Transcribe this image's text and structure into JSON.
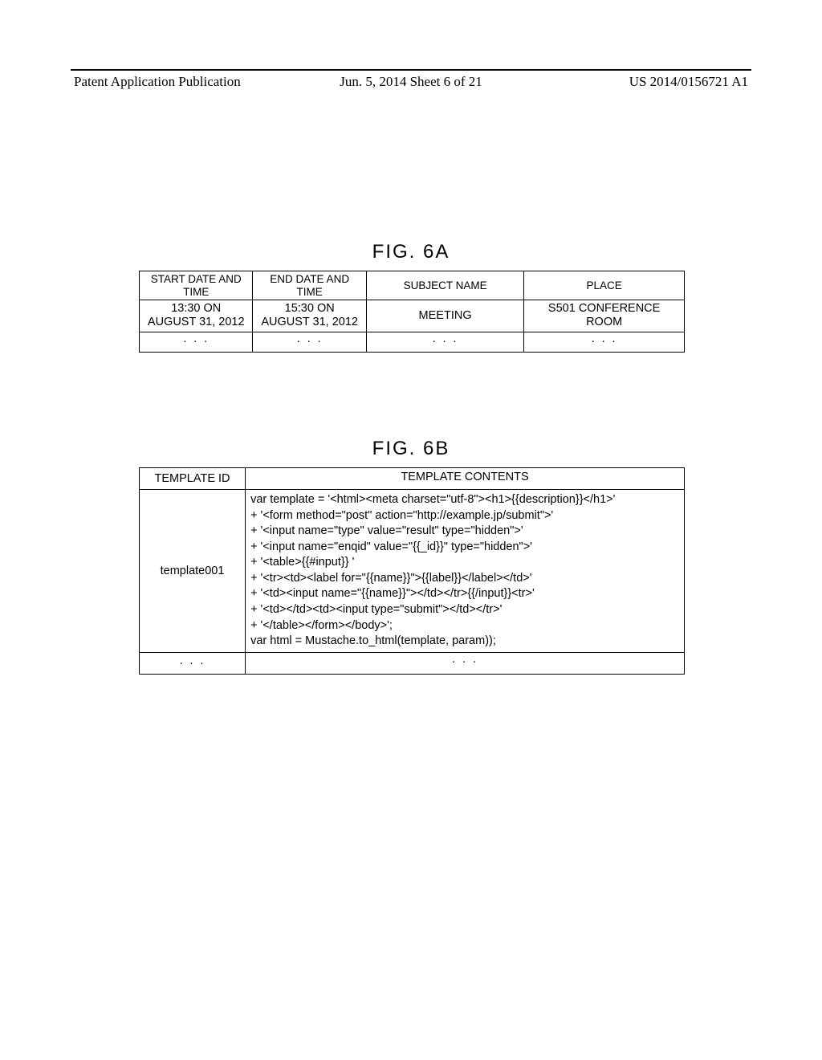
{
  "header": {
    "left": "Patent Application Publication",
    "center": "Jun. 5, 2014   Sheet 6 of 21",
    "right": "US 2014/0156721 A1"
  },
  "fig6a": {
    "label": "FIG. 6A",
    "headers": [
      "START DATE AND TIME",
      "END DATE AND TIME",
      "SUBJECT NAME",
      "PLACE"
    ],
    "row1": {
      "c0a": "13:30 ON",
      "c0b": "AUGUST 31, 2012",
      "c1a": "15:30 ON",
      "c1b": "AUGUST 31, 2012",
      "c2": "MEETING",
      "c3a": "S501 CONFERENCE",
      "c3b": "ROOM"
    },
    "row2": [
      "· · ·",
      "· · ·",
      "· · ·",
      "· · ·"
    ]
  },
  "fig6b": {
    "label": "FIG. 6B",
    "headers": [
      "TEMPLATE ID",
      "TEMPLATE CONTENTS"
    ],
    "row1": {
      "id": "template001",
      "lines": {
        "l0": "var template = '<html><meta charset=\"utf-8\"><h1>{{description}}</h1>'",
        "l1": "+ '<form method=\"post\" action=\"http://example.jp/submit\">'",
        "l2": "+ '<input name=\"type\" value=\"result\" type=\"hidden\">'",
        "l3": "+ '<input name=\"enqid\" value=\"{{_id}}\" type=\"hidden\">'",
        "l4": "+ '<table>{{#input}} '",
        "l5": "+ '<tr><td><label for=\"{{name}}\">{{label}}</label></td>'",
        "l6": "+ '<td><input name=\"{{name}}\"></td></tr>{{/input}}<tr>'",
        "l7": "+ '<td></td><td><input type=\"submit\"></td></tr>'",
        "l8": "+ '</table></form></body>';",
        "l9": "var html = Mustache.to_html(template, param));"
      }
    },
    "row2": {
      "c0": "· · ·",
      "c1": "· · ·"
    }
  }
}
